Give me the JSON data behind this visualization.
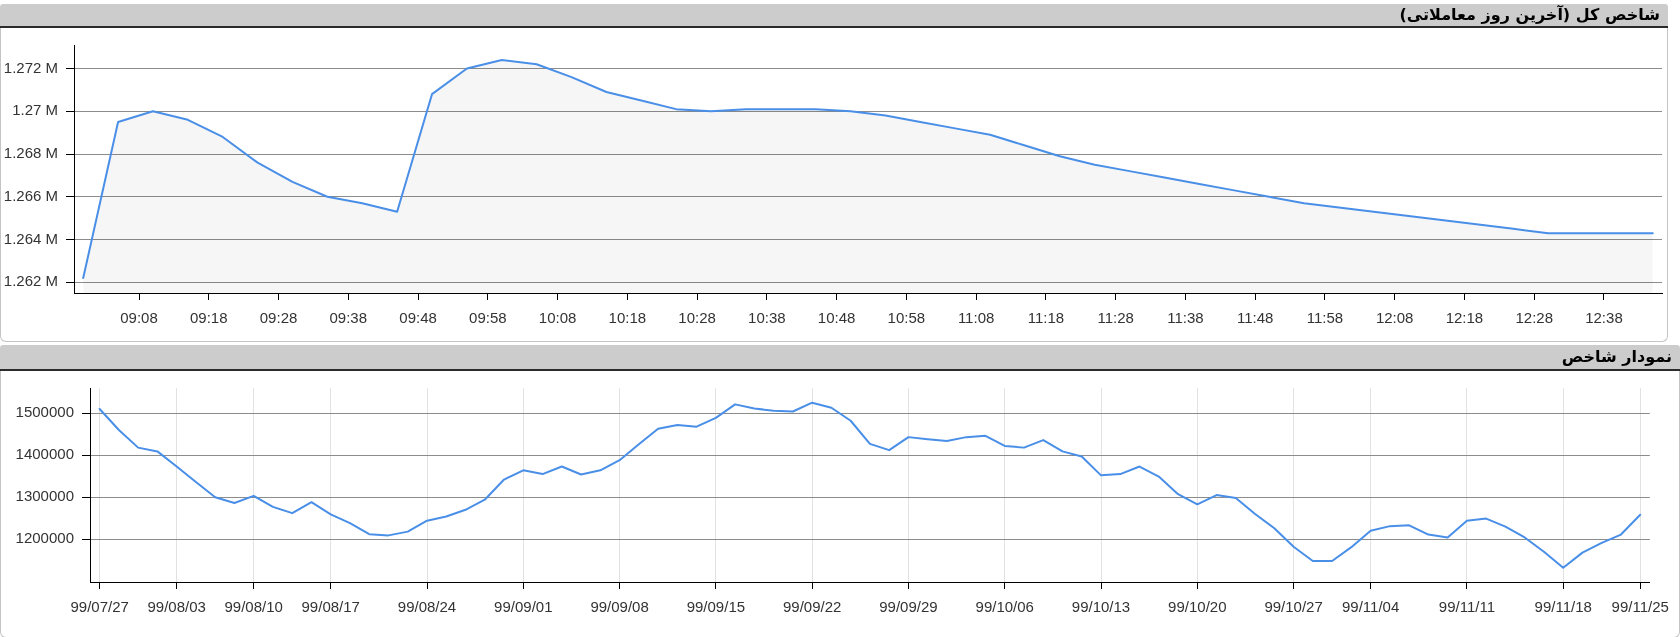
{
  "chart_data": [
    {
      "type": "area",
      "title": "شاخص کل (آخرین روز معاملاتی)",
      "x": [
        9,
        9.0833,
        9.1667,
        9.25,
        9.3333,
        9.4167,
        9.5,
        9.5833,
        9.6667,
        9.75,
        9.8333,
        9.9167,
        10,
        10.0833,
        10.1667,
        10.25,
        10.3333,
        10.4167,
        10.5,
        10.5833,
        10.6667,
        10.75,
        10.8333,
        10.9167,
        11,
        11.0833,
        11.1667,
        11.25,
        11.3333,
        11.4167,
        11.5,
        11.5833,
        11.6667,
        11.75,
        11.8333,
        11.9167,
        12,
        12.0833,
        12.1667,
        12.25,
        12.3333,
        12.4167,
        12.5,
        12.5833,
        12.6667,
        12.75
      ],
      "series": [
        {
          "color": "#4a8fe7",
          "values": [
            1.2622,
            1.2695,
            1.27,
            1.2696,
            1.2688,
            1.2676,
            1.2667,
            1.266,
            1.2657,
            1.2653,
            1.2708,
            1.272,
            1.2724,
            1.2722,
            1.2716,
            1.2709,
            1.2705,
            1.2701,
            1.27,
            1.2701,
            1.2701,
            1.2701,
            1.27,
            1.2698,
            1.2695,
            1.2692,
            1.2689,
            1.2684,
            1.2679,
            1.2675,
            1.2672,
            1.2669,
            1.2666,
            1.2663,
            1.266,
            1.2657,
            1.2655,
            1.2653,
            1.2651,
            1.2649,
            1.2647,
            1.2645,
            1.2643,
            1.2643,
            1.2643,
            1.2643
          ]
        }
      ],
      "xlim": [
        8.978,
        12.772
      ],
      "xticks": [
        {
          "value": 9.1333,
          "label": "09:08"
        },
        {
          "value": 9.3,
          "label": "09:18"
        },
        {
          "value": 9.4667,
          "label": "09:28"
        },
        {
          "value": 9.6333,
          "label": "09:38"
        },
        {
          "value": 9.8,
          "label": "09:48"
        },
        {
          "value": 9.9667,
          "label": "09:58"
        },
        {
          "value": 10.1333,
          "label": "10:08"
        },
        {
          "value": 10.3,
          "label": "10:18"
        },
        {
          "value": 10.4667,
          "label": "10:28"
        },
        {
          "value": 10.6333,
          "label": "10:38"
        },
        {
          "value": 10.8,
          "label": "10:48"
        },
        {
          "value": 10.9667,
          "label": "10:58"
        },
        {
          "value": 11.1333,
          "label": "11:08"
        },
        {
          "value": 11.3,
          "label": "11:18"
        },
        {
          "value": 11.4667,
          "label": "11:28"
        },
        {
          "value": 11.6333,
          "label": "11:38"
        },
        {
          "value": 11.8,
          "label": "11:48"
        },
        {
          "value": 11.9667,
          "label": "11:58"
        },
        {
          "value": 12.1333,
          "label": "12:08"
        },
        {
          "value": 12.3,
          "label": "12:18"
        },
        {
          "value": 12.4667,
          "label": "12:28"
        },
        {
          "value": 12.6333,
          "label": "12:38"
        }
      ],
      "ylim": [
        1.2615,
        1.2731
      ],
      "yticks": [
        {
          "value": 1.262,
          "label": "1.262 M"
        },
        {
          "value": 1.264,
          "label": "1.264 M"
        },
        {
          "value": 1.266,
          "label": "1.266 M"
        },
        {
          "value": 1.268,
          "label": "1.268 M"
        },
        {
          "value": 1.27,
          "label": "1.27 M"
        },
        {
          "value": 1.272,
          "label": "1.272 M"
        }
      ],
      "grid": "y"
    },
    {
      "type": "line",
      "title": "نمودار شاخص",
      "categories": [
        "99/07/27",
        null,
        null,
        null,
        "99/08/03",
        null,
        null,
        null,
        "99/08/10",
        null,
        null,
        null,
        "99/08/17",
        null,
        null,
        null,
        null,
        "99/08/24",
        null,
        null,
        null,
        null,
        "99/09/01",
        null,
        null,
        null,
        null,
        "99/09/08",
        null,
        null,
        null,
        null,
        "99/09/15",
        null,
        null,
        null,
        null,
        "99/09/22",
        null,
        null,
        null,
        null,
        "99/09/29",
        null,
        null,
        null,
        null,
        "99/10/06",
        null,
        null,
        null,
        null,
        "99/10/13",
        null,
        null,
        null,
        null,
        "99/10/20",
        null,
        null,
        null,
        null,
        "99/10/27",
        null,
        null,
        null,
        "99/11/04",
        null,
        null,
        null,
        null,
        "99/11/11",
        null,
        null,
        null,
        null,
        "99/11/18",
        null,
        null,
        null,
        "99/11/25"
      ],
      "series": [
        {
          "color": "#4a8fe7",
          "values": [
            1510000,
            1460000,
            1418000,
            1409000,
            1373000,
            1336000,
            1300000,
            1286000,
            1303000,
            1277000,
            1262000,
            1288000,
            1259000,
            1238000,
            1212000,
            1209000,
            1218000,
            1244000,
            1254000,
            1270000,
            1294000,
            1342000,
            1364000,
            1355000,
            1373000,
            1354000,
            1364000,
            1388000,
            1426000,
            1463000,
            1472000,
            1468000,
            1489000,
            1521000,
            1511000,
            1506000,
            1504000,
            1525000,
            1513000,
            1482000,
            1427000,
            1412000,
            1443000,
            1438000,
            1434000,
            1443000,
            1446000,
            1422000,
            1418000,
            1436000,
            1409000,
            1397000,
            1352000,
            1355000,
            1373000,
            1349000,
            1307000,
            1283000,
            1305000,
            1298000,
            1260000,
            1226000,
            1182000,
            1148000,
            1148000,
            1181000,
            1220000,
            1231000,
            1233000,
            1211000,
            1204000,
            1244000,
            1249000,
            1230000,
            1204000,
            1170000,
            1132000,
            1168000,
            1191000,
            1211000,
            1258000
          ]
        }
      ],
      "ylim": [
        1098000,
        1560000
      ],
      "yticks": [
        1200000,
        1300000,
        1400000,
        1500000
      ],
      "grid": true
    }
  ]
}
